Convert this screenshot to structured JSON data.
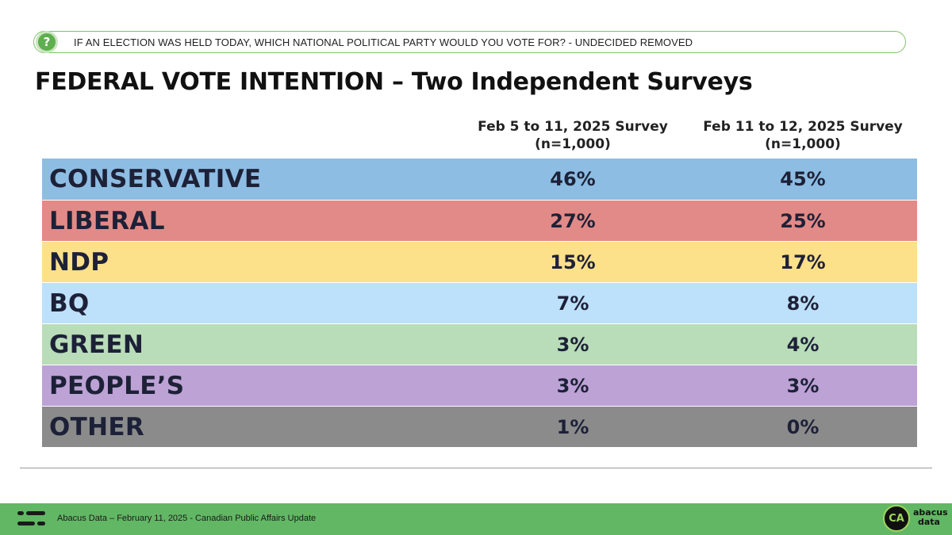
{
  "question": "IF AN ELECTION WAS HELD TODAY, WHICH NATIONAL POLITICAL PARTY WOULD YOU VOTE FOR? - UNDECIDED REMOVED",
  "question_icon": "?",
  "chart_data": {
    "type": "table",
    "title": "FEDERAL VOTE INTENTION – Two Independent Surveys",
    "columns": [
      {
        "label": "Feb 5 to 11, 2025 Survey",
        "sample": "(n=1,000)"
      },
      {
        "label": "Feb 11 to 12, 2025 Survey",
        "sample": "(n=1,000)"
      }
    ],
    "rows": [
      {
        "party": "CONSERVATIVE",
        "values": [
          "46%",
          "45%"
        ],
        "color": "#8dbde3"
      },
      {
        "party": "LIBERAL",
        "values": [
          "27%",
          "25%"
        ],
        "color": "#e28a87"
      },
      {
        "party": "NDP",
        "values": [
          "15%",
          "17%"
        ],
        "color": "#fde08a"
      },
      {
        "party": "BQ",
        "values": [
          "7%",
          "8%"
        ],
        "color": "#bde0fb"
      },
      {
        "party": "GREEN",
        "values": [
          "3%",
          "4%"
        ],
        "color": "#b9dcb9"
      },
      {
        "party": "PEOPLE’S",
        "values": [
          "3%",
          "3%"
        ],
        "color": "#bca2d5"
      },
      {
        "party": "OTHER",
        "values": [
          "1%",
          "0%"
        ],
        "color": "#8b8b8b"
      }
    ]
  },
  "footer": {
    "text": "Abacus Data – February 11, 2025 - Canadian Public Affairs Update",
    "badge": "CA",
    "brand_line1": "abacus",
    "brand_line2": "data",
    "bg_color": "#62b764"
  }
}
